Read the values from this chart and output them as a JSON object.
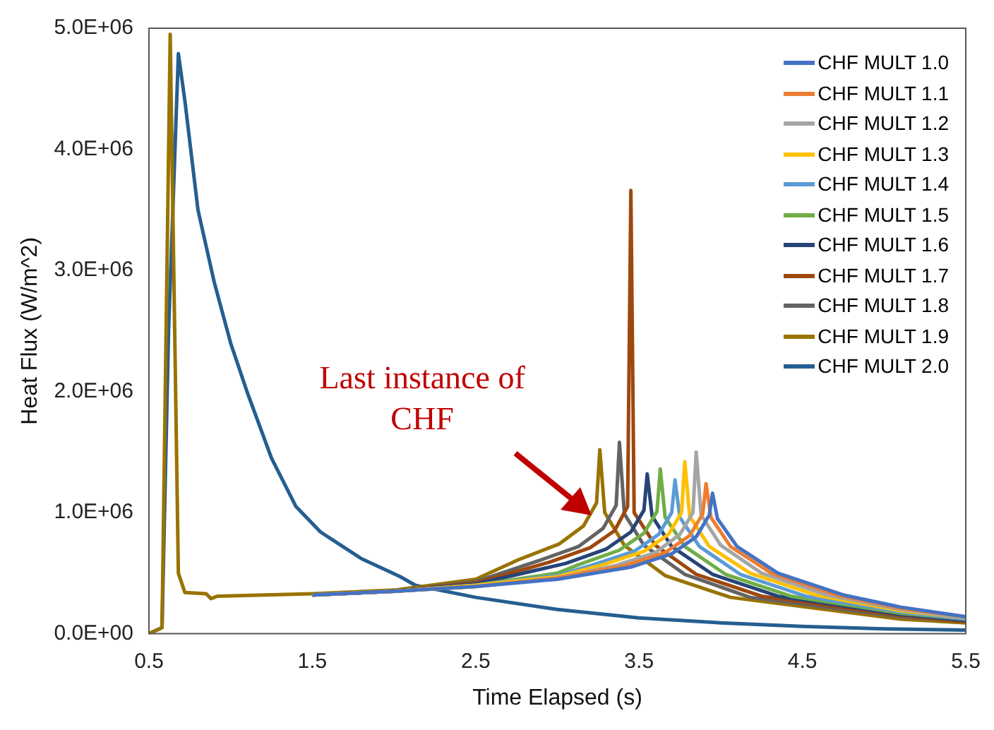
{
  "chart_data": {
    "type": "line",
    "xlabel": "Time Elapsed (s)",
    "ylabel": "Heat Flux (W/m^2)",
    "xlim": [
      0.5,
      5.5
    ],
    "xticks": [
      0.5,
      1.5,
      2.5,
      3.5,
      4.5,
      5.5
    ],
    "ylim": [
      0,
      5000000
    ],
    "yticks": [
      {
        "value": 0,
        "label": "0.0E+00"
      },
      {
        "value": 1000000,
        "label": "1.0E+06"
      },
      {
        "value": 2000000,
        "label": "2.0E+06"
      },
      {
        "value": 3000000,
        "label": "3.0E+06"
      },
      {
        "value": 4000000,
        "label": "4.0E+06"
      },
      {
        "value": 5000000,
        "label": "5.0E+06"
      }
    ],
    "grid": false,
    "legend": "top right",
    "marker": "none",
    "line_style": "solid",
    "annotations": [
      "Last instance of\nCHF"
    ],
    "series": [
      {
        "name": "CHF MULT 1.0",
        "color": "#4472c4",
        "x": [
          1.5,
          2.0,
          2.5,
          3.0,
          3.45,
          3.7,
          3.85,
          3.93,
          3.95,
          3.98,
          4.1,
          4.35,
          4.75,
          5.1,
          5.5
        ],
        "values": [
          320000,
          350000,
          390000,
          450000,
          550000,
          660000,
          800000,
          980000,
          1160000,
          950000,
          720000,
          500000,
          320000,
          220000,
          140000
        ]
      },
      {
        "name": "CHF MULT 1.1",
        "color": "#ed7d31",
        "x": [
          1.5,
          2.0,
          2.5,
          3.0,
          3.41,
          3.66,
          3.81,
          3.89,
          3.91,
          3.94,
          4.06,
          4.31,
          4.71,
          5.1,
          5.5
        ],
        "values": [
          320000,
          350000,
          390000,
          460000,
          560000,
          670000,
          810000,
          990000,
          1240000,
          960000,
          720000,
          500000,
          320000,
          210000,
          140000
        ]
      },
      {
        "name": "CHF MULT 1.2",
        "color": "#a5a5a5",
        "x": [
          1.5,
          2.0,
          2.5,
          3.0,
          3.35,
          3.6,
          3.75,
          3.83,
          3.85,
          3.88,
          4.0,
          4.25,
          4.65,
          5.1,
          5.5
        ],
        "values": [
          320000,
          350000,
          390000,
          460000,
          560000,
          670000,
          820000,
          1000000,
          1500000,
          980000,
          730000,
          500000,
          320000,
          200000,
          130000
        ]
      },
      {
        "name": "CHF MULT 1.3",
        "color": "#ffc000",
        "x": [
          1.5,
          2.0,
          2.5,
          3.0,
          3.28,
          3.53,
          3.68,
          3.76,
          3.78,
          3.81,
          3.93,
          4.18,
          4.58,
          5.1,
          5.5
        ],
        "values": [
          320000,
          350000,
          400000,
          470000,
          570000,
          680000,
          820000,
          1000000,
          1420000,
          970000,
          720000,
          500000,
          320000,
          190000,
          130000
        ]
      },
      {
        "name": "CHF MULT 1.4",
        "color": "#5b9bd5",
        "x": [
          1.5,
          2.0,
          2.5,
          3.0,
          3.22,
          3.47,
          3.62,
          3.7,
          3.72,
          3.75,
          3.87,
          4.12,
          4.52,
          5.1,
          5.5
        ],
        "values": [
          320000,
          350000,
          400000,
          480000,
          570000,
          680000,
          820000,
          1000000,
          1270000,
          960000,
          720000,
          490000,
          310000,
          180000,
          120000
        ]
      },
      {
        "name": "CHF MULT 1.5",
        "color": "#70ad47",
        "x": [
          1.5,
          2.0,
          2.5,
          3.0,
          3.13,
          3.38,
          3.53,
          3.61,
          3.63,
          3.66,
          3.78,
          4.03,
          4.43,
          5.1,
          5.5
        ],
        "values": [
          320000,
          350000,
          400000,
          500000,
          570000,
          690000,
          830000,
          1010000,
          1360000,
          960000,
          720000,
          490000,
          310000,
          170000,
          120000
        ]
      },
      {
        "name": "CHF MULT 1.6",
        "color": "#264478",
        "x": [
          1.5,
          2.0,
          2.5,
          3.05,
          3.3,
          3.45,
          3.53,
          3.55,
          3.58,
          3.7,
          3.95,
          4.35,
          5.1,
          5.5
        ],
        "values": [
          320000,
          350000,
          410000,
          580000,
          700000,
          840000,
          1020000,
          1320000,
          970000,
          720000,
          490000,
          310000,
          160000,
          110000
        ]
      },
      {
        "name": "CHF MULT 1.7",
        "color": "#9e480e",
        "x": [
          1.5,
          2.0,
          2.5,
          2.95,
          3.2,
          3.35,
          3.43,
          3.45,
          3.47,
          3.6,
          3.85,
          4.25,
          5.1,
          5.5
        ],
        "values": [
          320000,
          350000,
          420000,
          590000,
          710000,
          850000,
          1050000,
          3660000,
          1000000,
          730000,
          490000,
          310000,
          150000,
          100000
        ]
      },
      {
        "name": "CHF MULT 1.8",
        "color": "#636363",
        "x": [
          1.5,
          2.0,
          2.5,
          2.88,
          3.13,
          3.28,
          3.36,
          3.38,
          3.41,
          3.53,
          3.78,
          4.18,
          5.1,
          5.5
        ],
        "values": [
          320000,
          350000,
          430000,
          600000,
          720000,
          870000,
          1060000,
          1580000,
          990000,
          730000,
          490000,
          300000,
          140000,
          100000
        ]
      },
      {
        "name": "CHF MULT 1.9",
        "color": "#997300",
        "x": [
          0.5,
          0.58,
          0.63,
          0.68,
          0.72,
          0.85,
          0.88,
          0.92,
          1.5,
          2.0,
          2.5,
          2.76,
          3.01,
          3.16,
          3.24,
          3.26,
          3.29,
          3.41,
          3.66,
          4.06,
          5.1,
          5.5
        ],
        "values": [
          0,
          50000,
          4950000,
          500000,
          340000,
          330000,
          290000,
          310000,
          330000,
          360000,
          450000,
          610000,
          740000,
          890000,
          1080000,
          1520000,
          1000000,
          730000,
          480000,
          300000,
          120000,
          90000
        ]
      },
      {
        "name": "CHF MULT 2.0",
        "color": "#255e91",
        "x": [
          0.5,
          0.58,
          0.62,
          0.68,
          0.72,
          0.8,
          0.9,
          1.0,
          1.1,
          1.25,
          1.4,
          1.55,
          1.8,
          2.04,
          2.13,
          2.5,
          3.0,
          3.5,
          4.0,
          4.5,
          5.0,
          5.5
        ],
        "values": [
          0,
          50000,
          2500000,
          4790000,
          4400000,
          3500000,
          2900000,
          2400000,
          2000000,
          1450000,
          1050000,
          840000,
          620000,
          470000,
          400000,
          300000,
          200000,
          130000,
          90000,
          60000,
          40000,
          30000
        ]
      }
    ]
  }
}
